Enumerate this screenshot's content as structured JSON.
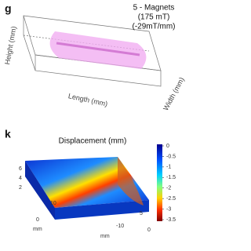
{
  "panel_g": {
    "letter": "g",
    "legend": [
      "5 - Magnets",
      "(175 mT)",
      "(-29mT/mm)"
    ],
    "height_label": "Height (mm)",
    "length_label": "Length (mm)",
    "width_label": "Width (mm)"
  },
  "panel_k": {
    "letter": "k",
    "title": "Displacement (mm)",
    "axis_labels": {
      "z": [
        "6",
        "4",
        "2"
      ],
      "y": [
        "10",
        "0",
        "mm"
      ],
      "x": [
        "-10",
        "mm"
      ],
      "w": [
        "5",
        "0"
      ]
    },
    "colorbar": {
      "range": [
        -3.5,
        0
      ],
      "ticks": [
        0,
        -0.5,
        -1,
        -1.5,
        -2,
        -2.5,
        -3,
        -3.5
      ]
    }
  }
}
